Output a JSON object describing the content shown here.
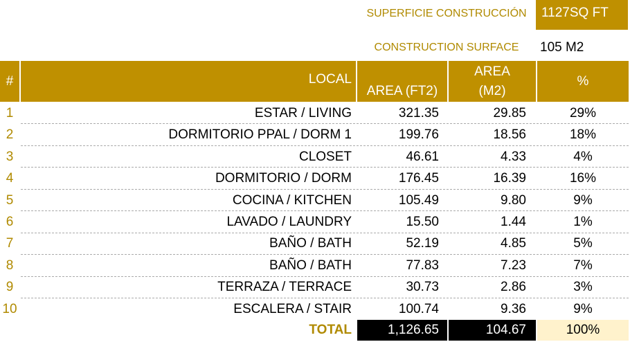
{
  "header": {
    "surface_label_es": "SUPERFICIE CONSTRUCCIÓN",
    "surface_ft": "1127SQ FT",
    "surface_label_en": "CONSTRUCTION SURFACE",
    "surface_m2": "105 M2"
  },
  "table": {
    "columns": [
      "#",
      "LOCAL",
      "AREA (FT2)",
      "AREA (M2)",
      "%"
    ],
    "rows": [
      [
        "1",
        "ESTAR / LIVING",
        "321.35",
        "29.85",
        "29%"
      ],
      [
        "2",
        "DORMITORIO PPAL / DORM 1",
        "199.76",
        "18.56",
        "18%"
      ],
      [
        "3",
        "CLOSET",
        "46.61",
        "4.33",
        "4%"
      ],
      [
        "4",
        "DORMITORIO / DORM",
        "176.45",
        "16.39",
        "16%"
      ],
      [
        "5",
        "COCINA / KITCHEN",
        "105.49",
        "9.80",
        "9%"
      ],
      [
        "6",
        "LAVADO / LAUNDRY",
        "15.50",
        "1.44",
        "1%"
      ],
      [
        "7",
        "BAÑO / BATH",
        "52.19",
        "4.85",
        "5%"
      ],
      [
        "8",
        "BAÑO / BATH",
        "77.83",
        "7.23",
        "7%"
      ],
      [
        "9",
        "TERRAZA / TERRACE",
        "30.73",
        "2.86",
        "3%"
      ],
      [
        "10",
        "ESCALERA / STAIR",
        "100.74",
        "9.36",
        "9%"
      ]
    ],
    "total": [
      "TOTAL",
      "1,126.65",
      "104.67",
      "100%"
    ]
  }
}
